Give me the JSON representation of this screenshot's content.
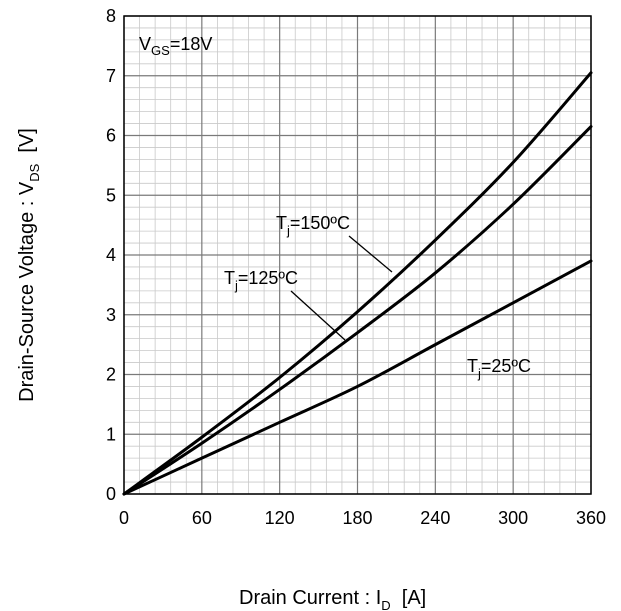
{
  "chart_data": {
    "type": "line",
    "xlabel": {
      "main": "Drain Current : I",
      "sub": "D",
      "unit": "  [A]"
    },
    "ylabel": {
      "main": "Drain-Source Voltage : V",
      "sub": "DS",
      "unit": "  [V]"
    },
    "xlim": [
      0,
      360
    ],
    "ylim": [
      0,
      8
    ],
    "x_ticks": [
      0,
      60,
      120,
      180,
      240,
      300,
      360
    ],
    "y_ticks": [
      0,
      1,
      2,
      3,
      4,
      5,
      6,
      7,
      8
    ],
    "grid": true,
    "condition": {
      "prefix": "V",
      "sub": "GS",
      "suffix": "=18V"
    },
    "series": [
      {
        "name": "Tj=150ºC",
        "label": {
          "prefix": "T",
          "sub": "j",
          "suffix": "=150ºC"
        },
        "x": [
          0,
          60,
          120,
          180,
          240,
          300,
          360
        ],
        "y": [
          0,
          0.95,
          1.95,
          3.05,
          4.25,
          5.55,
          7.05
        ]
      },
      {
        "name": "Tj=125ºC",
        "label": {
          "prefix": "T",
          "sub": "j",
          "suffix": "=125ºC"
        },
        "x": [
          0,
          60,
          120,
          180,
          240,
          300,
          360
        ],
        "y": [
          0,
          0.85,
          1.75,
          2.7,
          3.7,
          4.85,
          6.15
        ]
      },
      {
        "name": "Tj=25ºC",
        "label": {
          "prefix": "T",
          "sub": "j",
          "suffix": "=25ºC"
        },
        "x": [
          0,
          60,
          120,
          180,
          240,
          300,
          360
        ],
        "y": [
          0,
          0.6,
          1.2,
          1.8,
          2.5,
          3.2,
          3.9
        ]
      }
    ]
  }
}
